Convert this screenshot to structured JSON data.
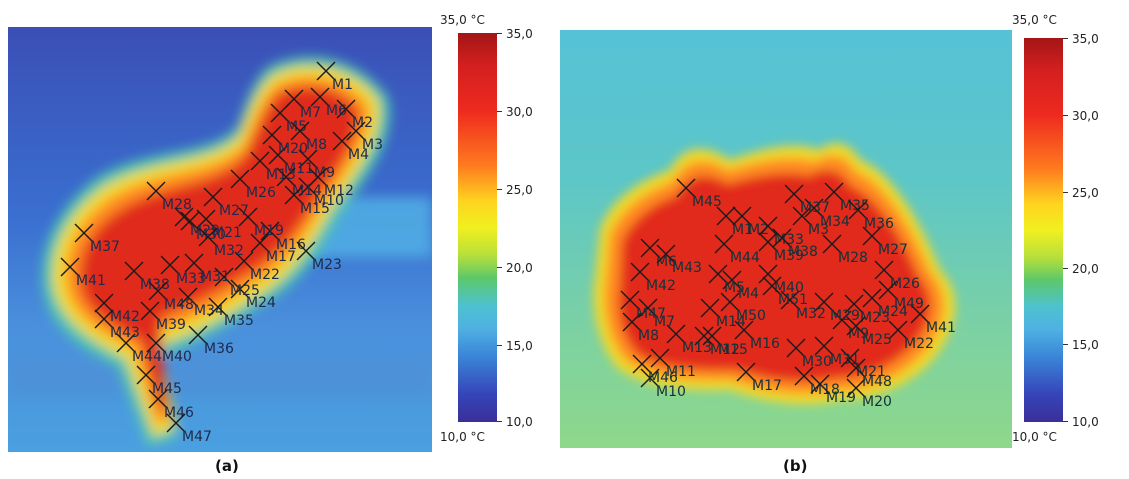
{
  "colorbar": {
    "max_label": "35,0 °C",
    "min_label": "10,0 °C",
    "ticks": [
      "35,0",
      "30,0",
      "25,0",
      "20,0",
      "15,0",
      "10,0"
    ]
  },
  "panel_labels": {
    "a": "(a)",
    "b": "(b)"
  },
  "markers_a": [
    "M1",
    "M2",
    "M3",
    "M4",
    "M5",
    "M6",
    "M7",
    "M8",
    "M9",
    "M10",
    "M11",
    "M12",
    "M13",
    "M14",
    "M15",
    "M16",
    "M17",
    "M19",
    "M20",
    "M21",
    "M22",
    "M23",
    "M24",
    "M25",
    "M26",
    "M27",
    "M28",
    "M29",
    "M30",
    "M31",
    "M32",
    "M33",
    "M34",
    "M35",
    "M36",
    "M37",
    "M38",
    "M39",
    "M40",
    "M41",
    "M42",
    "M43",
    "M44",
    "M45",
    "M46",
    "M47",
    "M48"
  ],
  "markers_b": [
    "M1",
    "M2",
    "M3",
    "M4",
    "M5",
    "M6",
    "M7",
    "M8",
    "M9",
    "M10",
    "M11",
    "M12",
    "M13",
    "M14",
    "M15",
    "M16",
    "M17",
    "M18",
    "M19",
    "M20",
    "M21",
    "M22",
    "M23",
    "M24",
    "M25",
    "M26",
    "M27",
    "M28",
    "M29",
    "M30",
    "M31",
    "M32",
    "M33",
    "M34",
    "M35",
    "M36",
    "M37",
    "M38",
    "M39",
    "M40",
    "M41",
    "M42",
    "M43",
    "M44",
    "M45",
    "M46",
    "M47",
    "M48",
    "M49",
    "M50",
    "M51"
  ],
  "colors": {
    "hot": "#d81e1e",
    "warm": "#f7d21f",
    "mid": "#5cc86a",
    "cool": "#4ec2cf",
    "cold": "#3544b8"
  }
}
